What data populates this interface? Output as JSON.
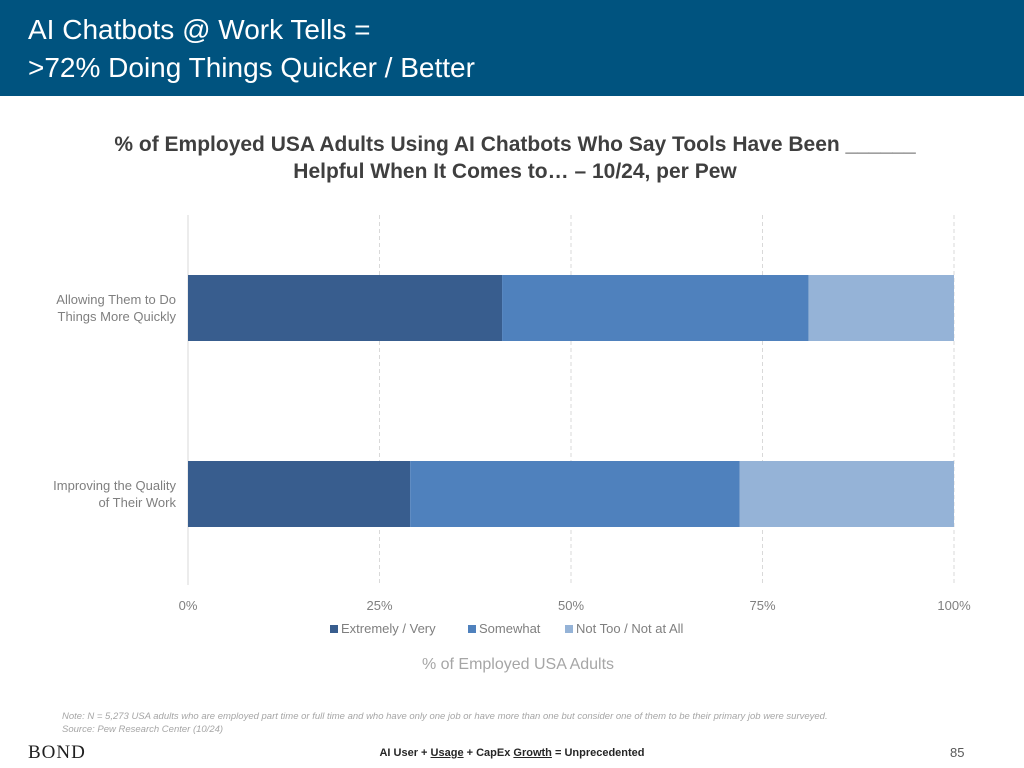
{
  "header": {
    "title_line1": "AI Chatbots @ Work Tells =",
    "title_line2": ">72% Doing Things Quicker / Better"
  },
  "chart_data": {
    "type": "bar",
    "orientation": "horizontal",
    "stacked": true,
    "title_line1": "% of Employed USA Adults Using AI Chatbots Who Say Tools Have Been ______",
    "title_line2": "Helpful When It Comes to… – 10/24, per Pew",
    "categories": [
      [
        "Allowing Them to Do",
        "Things More Quickly"
      ],
      [
        "Improving the Quality",
        "of Their Work"
      ]
    ],
    "series": [
      {
        "name": "Extremely / Very",
        "values": [
          41,
          29
        ],
        "color": "#385d8e"
      },
      {
        "name": "Somewhat",
        "values": [
          40,
          43
        ],
        "color": "#4f81bd"
      },
      {
        "name": "Not Too / Not at All",
        "values": [
          19,
          28
        ],
        "color": "#95b3d7"
      }
    ],
    "xlim": [
      0,
      100
    ],
    "xticks": [
      0,
      25,
      50,
      75,
      100
    ],
    "xtick_labels": [
      "0%",
      "25%",
      "50%",
      "75%",
      "100%"
    ],
    "xlabel": "% of Employed USA Adults",
    "grid": "vertical dashed",
    "legend_position": "bottom"
  },
  "notes": {
    "line1": "Note: N = 5,273 USA adults who are employed part time or full time and who have only one job or have more than one but consider one of them to be their primary job were surveyed.",
    "line2": "Source: Pew Research Center (10/24)"
  },
  "footer": {
    "brand": "BOND",
    "part1": "AI User + ",
    "part2": "Usage",
    "part3": " + CapEx ",
    "part4": "Growth",
    "part5": " = Unprecedented",
    "page_number": "85"
  }
}
